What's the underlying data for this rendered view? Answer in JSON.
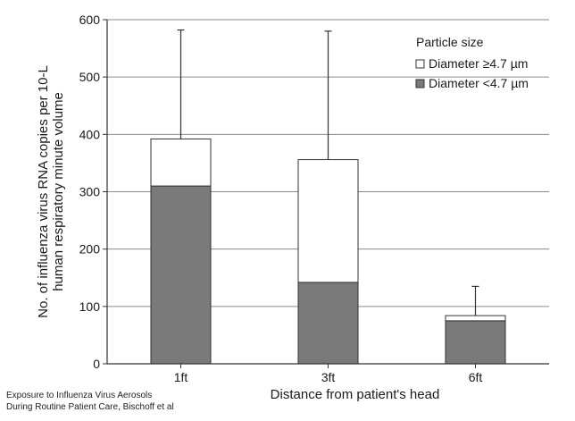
{
  "chart_data": {
    "type": "bar",
    "stacked": true,
    "error_bars": true,
    "categories": [
      "1ft",
      "3ft",
      "6ft"
    ],
    "series": [
      {
        "name": "Diameter <4.7 µm",
        "color": "#7a7a7a",
        "values": [
          310,
          142,
          75
        ]
      },
      {
        "name": "Diameter ≥4.7 µm",
        "color": "#ffffff",
        "values": [
          82,
          214,
          9
        ]
      }
    ],
    "totals": [
      392,
      356,
      84
    ],
    "error_upper": [
      582,
      580,
      135
    ],
    "xlabel": "Distance from patient's head",
    "ylabel": "No. of influenza virus RNA copies per 10-L human respiratory minute volume",
    "ylabel_lines": [
      "No. of influenza virus RNA copies per 10-L",
      "human respiratory minute volume"
    ],
    "ylim": [
      0,
      600
    ],
    "yticks": [
      0,
      100,
      200,
      300,
      400,
      500,
      600
    ],
    "grid": true,
    "legend": {
      "title": "Particle size",
      "placement": "top-right",
      "entries": [
        {
          "label": "Diameter ≥4.7 µm",
          "color": "#ffffff"
        },
        {
          "label": "Diameter <4.7 µm",
          "color": "#7a7a7a"
        }
      ]
    }
  },
  "caption": {
    "line1": "Exposure to Influenza Virus Aerosols",
    "line2": "During Routine Patient Care, Bischoff et al"
  }
}
